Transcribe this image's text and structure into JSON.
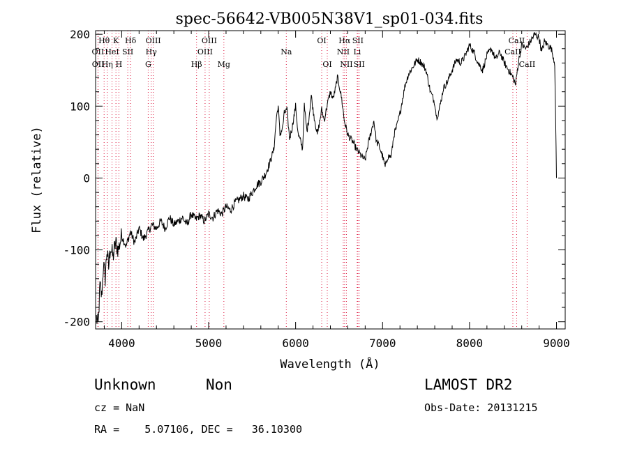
{
  "chart_data": {
    "type": "line",
    "title": "spec-56642-VB005N38V1_sp01-034.fits",
    "xlabel": "Wavelength (Å)",
    "ylabel": "Flux (relative)",
    "xlim": [
      3700,
      9100
    ],
    "ylim": [
      -210,
      205
    ],
    "xticks": [
      4000,
      5000,
      6000,
      7000,
      8000,
      9000
    ],
    "yticks": [
      -200,
      -100,
      0,
      100,
      200
    ],
    "grid": false,
    "line_color": "#000000",
    "marker_color": "#dc143c",
    "series": [
      {
        "x": [
          3710,
          3730,
          3750,
          3770,
          3790,
          3810,
          3830,
          3850,
          3870,
          3900,
          3930,
          3960,
          4000,
          4050,
          4100,
          4150,
          4200,
          4250,
          4300,
          4350,
          4400,
          4450,
          4500,
          4550,
          4600,
          4650,
          4700,
          4750,
          4800,
          4850,
          4900,
          4950,
          5000,
          5050,
          5100,
          5150,
          5200,
          5250,
          5300,
          5350,
          5400,
          5450,
          5500,
          5550,
          5600,
          5650,
          5700,
          5750,
          5780,
          5800,
          5820,
          5850,
          5870,
          5900,
          5930,
          5960,
          6000,
          6030,
          6060,
          6080,
          6100,
          6130,
          6150,
          6180,
          6200,
          6250,
          6300,
          6330,
          6360,
          6400,
          6430,
          6460,
          6480,
          6500,
          6530,
          6560,
          6580,
          6600,
          6630,
          6660,
          6700,
          6730,
          6760,
          6800,
          6830,
          6860,
          6900,
          6930,
          6960,
          7000,
          7030,
          7060,
          7100,
          7130,
          7160,
          7200,
          7230,
          7260,
          7300,
          7350,
          7400,
          7450,
          7500,
          7550,
          7600,
          7620,
          7640,
          7660,
          7700,
          7750,
          7800,
          7850,
          7900,
          7950,
          8000,
          8050,
          8100,
          8150,
          8200,
          8250,
          8300,
          8350,
          8400,
          8450,
          8500,
          8530,
          8560,
          8600,
          8650,
          8700,
          8750,
          8800,
          8830,
          8860,
          8900,
          8940,
          8960,
          8980,
          8990,
          9000
        ],
        "y": [
          -195,
          -205,
          -150,
          -165,
          -120,
          -140,
          -100,
          -125,
          -95,
          -110,
          -90,
          -100,
          -80,
          -95,
          -75,
          -90,
          -70,
          -85,
          -75,
          -65,
          -70,
          -60,
          -70,
          -55,
          -65,
          -60,
          -55,
          -65,
          -50,
          -58,
          -52,
          -60,
          -50,
          -55,
          -45,
          -50,
          -40,
          -45,
          -35,
          -30,
          -25,
          -30,
          -20,
          -10,
          -5,
          5,
          20,
          40,
          85,
          100,
          60,
          70,
          90,
          95,
          55,
          70,
          100,
          60,
          50,
          40,
          100,
          65,
          80,
          115,
          95,
          60,
          95,
          80,
          100,
          120,
          110,
          125,
          140,
          130,
          110,
          80,
          70,
          60,
          55,
          50,
          40,
          35,
          30,
          25,
          45,
          60,
          80,
          50,
          45,
          30,
          15,
          30,
          30,
          60,
          70,
          90,
          110,
          130,
          145,
          155,
          165,
          160,
          150,
          120,
          105,
          85,
          90,
          100,
          125,
          135,
          150,
          165,
          160,
          170,
          185,
          175,
          160,
          150,
          170,
          180,
          165,
          175,
          160,
          150,
          140,
          130,
          160,
          185,
          180,
          190,
          200,
          195,
          175,
          190,
          185,
          180,
          170,
          160,
          80,
          0
        ]
      }
    ],
    "lines": [
      {
        "row": 0,
        "label": "Hθ",
        "x": 3798
      },
      {
        "row": 0,
        "label": "K",
        "x": 3934
      },
      {
        "row": 0,
        "label": "Hδ",
        "x": 4102
      },
      {
        "row": 0,
        "label": "OIII",
        "x": 4363
      },
      {
        "row": 0,
        "label": "OIII",
        "x": 5007
      },
      {
        "row": 0,
        "label": "OI",
        "x": 6300
      },
      {
        "row": 0,
        "label": "Hα",
        "x": 6563
      },
      {
        "row": 0,
        "label": "SII",
        "x": 6716
      },
      {
        "row": 0,
        "label": "CaII",
        "x": 8542
      },
      {
        "row": 1,
        "label": "OII",
        "x": 3727
      },
      {
        "row": 1,
        "label": "HeI",
        "x": 3889
      },
      {
        "row": 1,
        "label": "SII",
        "x": 4070
      },
      {
        "row": 1,
        "label": "Hγ",
        "x": 4340
      },
      {
        "row": 1,
        "label": "OIII",
        "x": 4959
      },
      {
        "row": 1,
        "label": "Na",
        "x": 5893
      },
      {
        "row": 1,
        "label": "NII",
        "x": 6548
      },
      {
        "row": 1,
        "label": "Li",
        "x": 6708
      },
      {
        "row": 1,
        "label": "CaII",
        "x": 8498
      },
      {
        "row": 2,
        "label": "OII",
        "x": 3729
      },
      {
        "row": 2,
        "label": "Hη",
        "x": 3835
      },
      {
        "row": 2,
        "label": "H",
        "x": 3968
      },
      {
        "row": 2,
        "label": "G",
        "x": 4305
      },
      {
        "row": 2,
        "label": "Hβ",
        "x": 4861
      },
      {
        "row": 2,
        "label": "Mg",
        "x": 5175
      },
      {
        "row": 2,
        "label": "OI",
        "x": 6364
      },
      {
        "row": 2,
        "label": "NII",
        "x": 6584
      },
      {
        "row": 2,
        "label": "SII",
        "x": 6731
      },
      {
        "row": 2,
        "label": "CaII",
        "x": 8662
      }
    ]
  },
  "info": {
    "class_label": "Unknown",
    "subclass_label": "Non",
    "survey_label": "LAMOST DR2",
    "cz_text": "cz = NaN",
    "obs_date_text": "Obs-Date: 20131215",
    "radec_text": "RA =    5.07106, DEC =   36.10300"
  }
}
